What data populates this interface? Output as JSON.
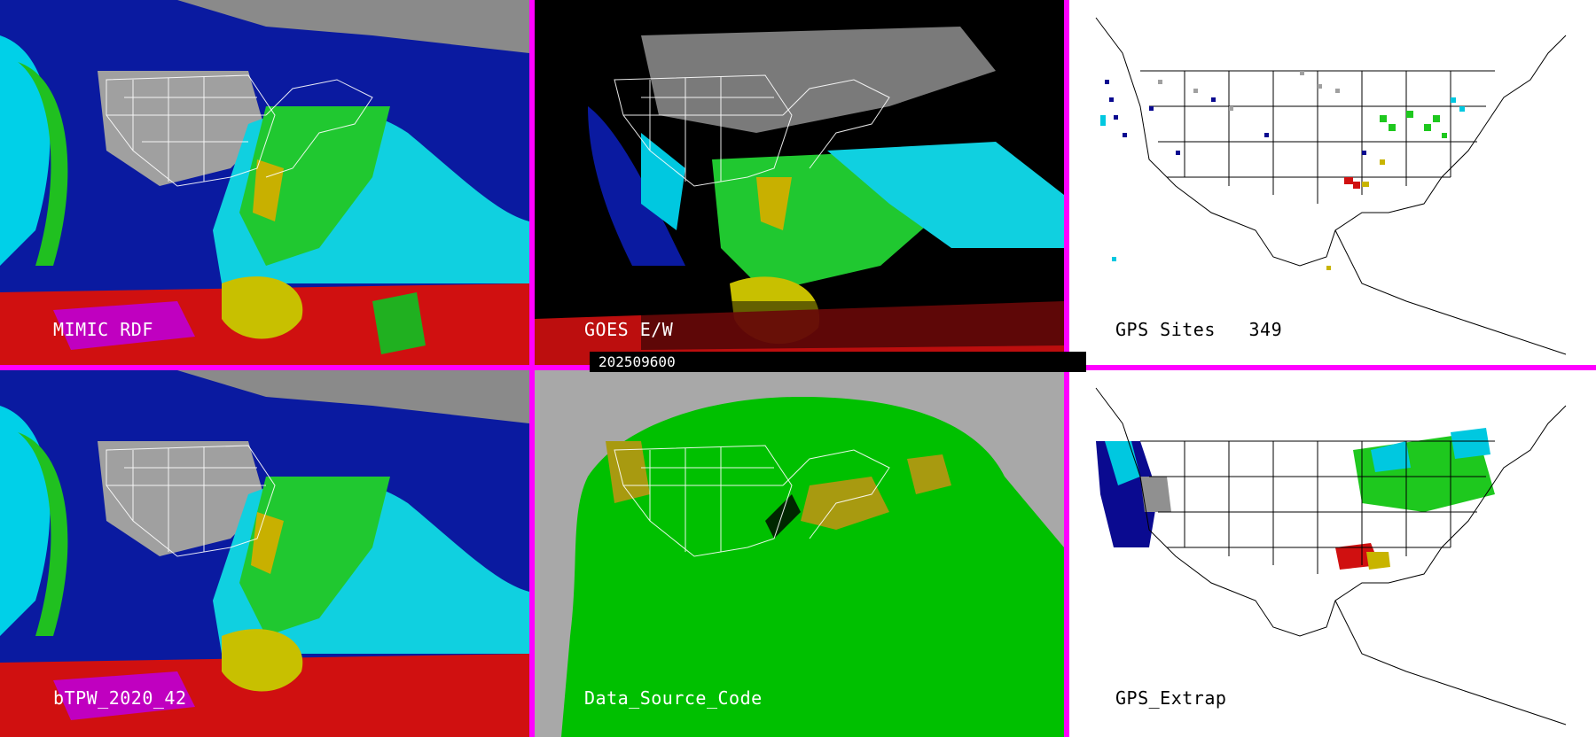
{
  "panels": {
    "p1": {
      "label": "MIMIC RDF"
    },
    "p2": {
      "label": "GOES E/W"
    },
    "p3": {
      "label": "GPS Sites   349"
    },
    "p4": {
      "label": "bTPW_2020_42"
    },
    "p5": {
      "label": "Data_Source_Code"
    },
    "p6": {
      "label": "GPS_Extrap"
    }
  },
  "timestamp": "202509600",
  "colors": {
    "separator": "#ff00ff",
    "tpw_low": "#0a0a90",
    "tpw_mid": "#00c8e0",
    "tpw_green": "#1ec81e",
    "tpw_yellow": "#c8b400",
    "tpw_high": "#d01010",
    "tpw_max": "#c000c0",
    "land_gray": "#9a9a9a",
    "source_gray": "#a8a8a8",
    "source_green": "#00c000",
    "source_olive": "#a89a10"
  }
}
